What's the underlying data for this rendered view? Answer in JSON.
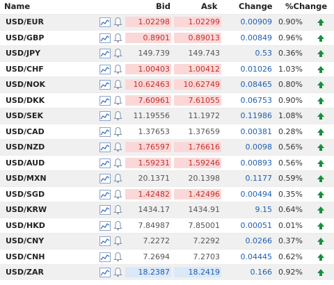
{
  "headers": {
    "name": "Name",
    "bid": "Bid",
    "ask": "Ask",
    "change": "Change",
    "pct": "%Change"
  },
  "icons": {
    "chart": "line-chart-icon",
    "alert": "bell-icon",
    "trend": "up-arrow-icon"
  },
  "colors": {
    "up_text": "#c0312f",
    "up_bg": "#fbd8d8",
    "blue_text": "#1f5fb0",
    "blue_bg": "#dbe8f8",
    "arrow": "#1a8f3c"
  },
  "rows": [
    {
      "pair": "USD/EUR",
      "bid": "1.02298",
      "ask": "1.02299",
      "change": "0.00909",
      "pct": "0.90%",
      "state": "up"
    },
    {
      "pair": "USD/GBP",
      "bid": "0.8901",
      "ask": "0.89013",
      "change": "0.00849",
      "pct": "0.96%",
      "state": "up"
    },
    {
      "pair": "USD/JPY",
      "bid": "149.739",
      "ask": "149.743",
      "change": "0.53",
      "pct": "0.36%",
      "state": "neutral"
    },
    {
      "pair": "USD/CHF",
      "bid": "1.00403",
      "ask": "1.00412",
      "change": "0.01026",
      "pct": "1.03%",
      "state": "up"
    },
    {
      "pair": "USD/NOK",
      "bid": "10.62463",
      "ask": "10.62749",
      "change": "0.08465",
      "pct": "0.80%",
      "state": "up"
    },
    {
      "pair": "USD/DKK",
      "bid": "7.60961",
      "ask": "7.61055",
      "change": "0.06753",
      "pct": "0.90%",
      "state": "up"
    },
    {
      "pair": "USD/SEK",
      "bid": "11.19556",
      "ask": "11.1972",
      "change": "0.11986",
      "pct": "1.08%",
      "state": "neutral"
    },
    {
      "pair": "USD/CAD",
      "bid": "1.37653",
      "ask": "1.37659",
      "change": "0.00381",
      "pct": "0.28%",
      "state": "neutral"
    },
    {
      "pair": "USD/NZD",
      "bid": "1.76597",
      "ask": "1.76616",
      "change": "0.0098",
      "pct": "0.56%",
      "state": "up"
    },
    {
      "pair": "USD/AUD",
      "bid": "1.59231",
      "ask": "1.59246",
      "change": "0.00893",
      "pct": "0.56%",
      "state": "up"
    },
    {
      "pair": "USD/MXN",
      "bid": "20.1371",
      "ask": "20.1398",
      "change": "0.1177",
      "pct": "0.59%",
      "state": "neutral"
    },
    {
      "pair": "USD/SGD",
      "bid": "1.42482",
      "ask": "1.42496",
      "change": "0.00494",
      "pct": "0.35%",
      "state": "up"
    },
    {
      "pair": "USD/KRW",
      "bid": "1434.17",
      "ask": "1434.91",
      "change": "9.15",
      "pct": "0.64%",
      "state": "neutral"
    },
    {
      "pair": "USD/HKD",
      "bid": "7.84987",
      "ask": "7.85001",
      "change": "0.00051",
      "pct": "0.01%",
      "state": "neutral"
    },
    {
      "pair": "USD/CNY",
      "bid": "7.2272",
      "ask": "7.2292",
      "change": "0.0266",
      "pct": "0.37%",
      "state": "neutral"
    },
    {
      "pair": "USD/CNH",
      "bid": "7.2694",
      "ask": "7.2703",
      "change": "0.04445",
      "pct": "0.62%",
      "state": "neutral"
    },
    {
      "pair": "USD/ZAR",
      "bid": "18.2387",
      "ask": "18.2419",
      "change": "0.166",
      "pct": "0.92%",
      "state": "blue"
    }
  ]
}
